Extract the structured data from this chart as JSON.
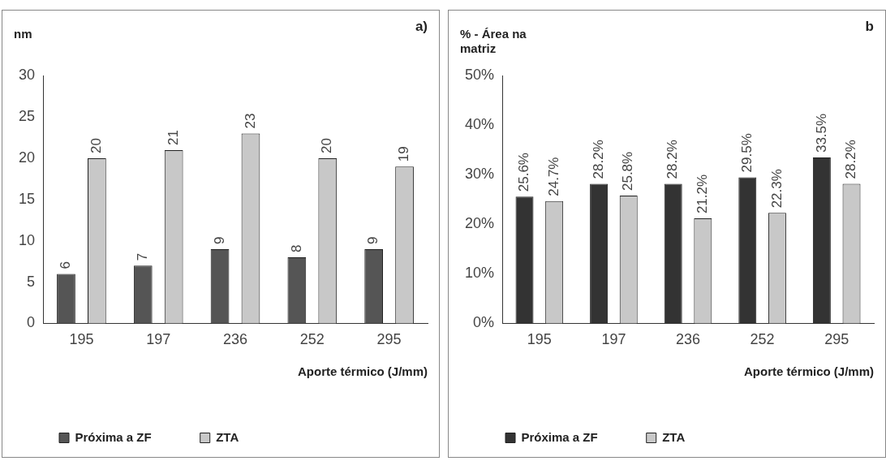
{
  "chart_data": [
    {
      "type": "bar",
      "title": "a)",
      "ylabel": "nm",
      "xlabel": "Aporte térmico (J/mm)",
      "categories": [
        "195",
        "197",
        "236",
        "252",
        "295"
      ],
      "series": [
        {
          "name": "Próxima a ZF",
          "color": "#555555",
          "values": [
            6,
            7,
            9,
            8,
            9
          ]
        },
        {
          "name": "ZTA",
          "color": "#c8c8c8",
          "values": [
            20,
            21,
            23,
            20,
            19
          ]
        }
      ],
      "ylim": [
        0,
        30
      ],
      "yticks": [
        0,
        5,
        10,
        15,
        20,
        25,
        30
      ],
      "grid": false,
      "legend": "bottom",
      "data_labels": true
    },
    {
      "type": "bar",
      "title": "b",
      "ylabel": "% - Área na matriz",
      "xlabel": "Aporte térmico (J/mm)",
      "categories": [
        "195",
        "197",
        "236",
        "252",
        "295"
      ],
      "series": [
        {
          "name": "Próxima a ZF",
          "color": "#333333",
          "values": [
            25.6,
            28.2,
            28.2,
            29.5,
            33.5
          ],
          "value_labels": [
            "25.6%",
            "28.2%",
            "28.2%",
            "29.5%",
            "33.5%"
          ]
        },
        {
          "name": "ZTA",
          "color": "#c8c8c8",
          "values": [
            24.7,
            25.8,
            21.2,
            22.3,
            28.2
          ],
          "value_labels": [
            "24.7%",
            "25.8%",
            "21.2%",
            "22.3%",
            "28.2%"
          ]
        }
      ],
      "ylim": [
        0,
        50
      ],
      "yticks": [
        {
          "value": 0,
          "label": "0%"
        },
        {
          "value": 10,
          "label": "10%"
        },
        {
          "value": 20,
          "label": "20%"
        },
        {
          "value": 30,
          "label": "30%"
        },
        {
          "value": 40,
          "label": "40%"
        },
        {
          "value": 50,
          "label": "50%"
        }
      ],
      "grid": false,
      "legend": "bottom"
    }
  ]
}
